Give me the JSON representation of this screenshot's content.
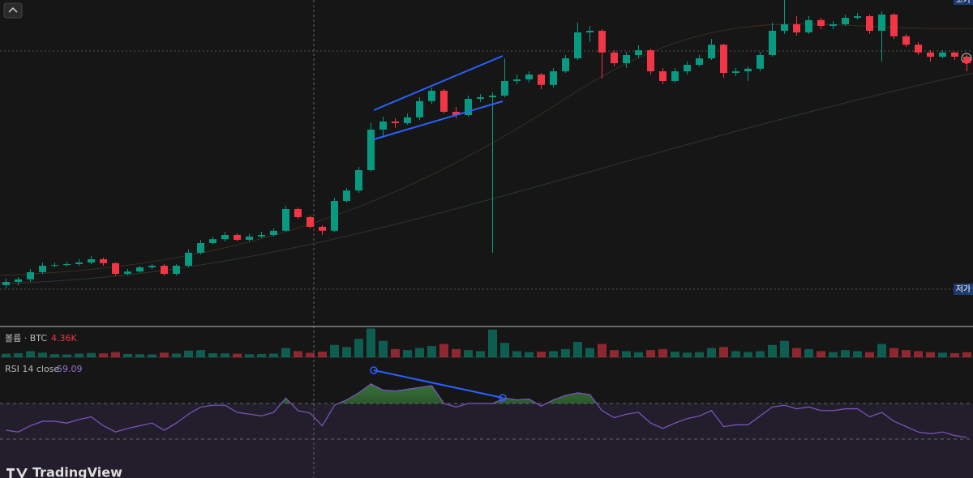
{
  "chart_data": {
    "type": "candlestick",
    "ylim": [
      0,
      100
    ],
    "candles": [
      [
        12,
        14,
        11,
        13
      ],
      [
        13,
        14.5,
        12,
        13.8
      ],
      [
        13.8,
        17,
        13,
        16
      ],
      [
        16,
        19,
        15.5,
        18
      ],
      [
        18,
        19,
        17.5,
        18.2
      ],
      [
        18.2,
        19.2,
        17.8,
        18.5
      ],
      [
        18.5,
        20,
        18,
        19
      ],
      [
        19,
        21,
        18.5,
        20
      ],
      [
        20,
        20.5,
        18,
        18.8
      ],
      [
        18.8,
        19,
        15,
        15.5
      ],
      [
        15.5,
        17,
        15,
        16.2
      ],
      [
        16.2,
        18,
        15.8,
        17.5
      ],
      [
        17.5,
        18.5,
        17,
        18
      ],
      [
        18,
        18.5,
        15,
        15.5
      ],
      [
        15.5,
        18.5,
        15,
        18
      ],
      [
        18,
        23,
        17.5,
        22
      ],
      [
        22,
        26,
        21.5,
        25
      ],
      [
        25,
        27,
        24.5,
        26.2
      ],
      [
        26.2,
        28.5,
        25.5,
        27.5
      ],
      [
        27.5,
        28,
        25.5,
        26
      ],
      [
        26,
        27.8,
        25.5,
        27
      ],
      [
        27,
        28.5,
        26.5,
        27.5
      ],
      [
        27.5,
        29.5,
        27,
        28.8
      ],
      [
        28.8,
        36.5,
        28.5,
        35.5
      ],
      [
        35.5,
        36,
        32.5,
        33
      ],
      [
        33,
        33.5,
        29.5,
        30
      ],
      [
        30,
        30.5,
        27.5,
        28.8
      ],
      [
        28.8,
        39,
        28.5,
        38
      ],
      [
        38,
        42,
        37.5,
        41.2
      ],
      [
        41.2,
        48.5,
        40.5,
        47.5
      ],
      [
        47.5,
        62,
        47,
        60
      ],
      [
        60,
        64,
        58,
        62.5
      ],
      [
        62.5,
        63.5,
        60.5,
        62
      ],
      [
        62,
        65,
        61.5,
        63.8
      ],
      [
        63.8,
        70,
        63,
        68.8
      ],
      [
        68.8,
        73,
        68,
        72
      ],
      [
        72,
        72.5,
        65,
        65.5
      ],
      [
        65.5,
        67,
        63.5,
        64.5
      ],
      [
        64.5,
        70.5,
        64,
        69.5
      ],
      [
        69.5,
        71,
        68.5,
        70
      ],
      [
        70,
        71.5,
        22,
        70.5
      ],
      [
        70.5,
        82,
        70,
        75
      ],
      [
        75,
        77,
        74,
        75.5
      ],
      [
        75.5,
        78,
        74.5,
        77
      ],
      [
        77,
        77.5,
        72.5,
        73.8
      ],
      [
        73.8,
        79,
        73,
        78
      ],
      [
        78,
        83,
        77.5,
        82
      ],
      [
        82,
        93,
        81.5,
        90
      ],
      [
        90,
        92,
        87,
        90.5
      ],
      [
        90.5,
        91,
        75.8,
        83.8
      ],
      [
        83.8,
        84.5,
        79.5,
        80.5
      ],
      [
        80.5,
        84,
        79,
        83
      ],
      [
        83,
        86,
        82,
        84.5
      ],
      [
        84.5,
        85,
        77,
        78
      ],
      [
        78,
        79,
        74,
        75
      ],
      [
        75,
        79,
        74.5,
        78
      ],
      [
        78,
        81,
        77,
        80
      ],
      [
        80,
        83,
        79.5,
        82
      ],
      [
        82,
        88,
        81.5,
        86.2
      ],
      [
        86.2,
        86.5,
        76,
        77.5
      ],
      [
        77.5,
        79,
        76.5,
        78
      ],
      [
        78,
        79.5,
        75,
        78.8
      ],
      [
        78.8,
        84,
        78,
        83
      ],
      [
        83,
        93,
        82.5,
        90.5
      ],
      [
        90.5,
        100,
        89.5,
        92.5
      ],
      [
        92.5,
        95,
        89,
        90
      ],
      [
        90,
        95,
        89.5,
        93.8
      ],
      [
        93.8,
        94.5,
        91,
        92
      ],
      [
        92,
        93.5,
        91,
        92.5
      ],
      [
        92.5,
        95.5,
        92,
        94.5
      ],
      [
        94.5,
        96,
        94,
        95
      ],
      [
        95,
        95.5,
        89.5,
        90.5
      ],
      [
        90.5,
        96.5,
        81,
        95.5
      ],
      [
        95.5,
        96,
        88,
        88.8
      ],
      [
        88.8,
        89.5,
        85.5,
        86.2
      ],
      [
        86.2,
        87,
        83,
        83.8
      ],
      [
        83.8,
        84.5,
        81,
        82.5
      ],
      [
        82.5,
        84.5,
        82,
        83.8
      ],
      [
        83.8,
        84,
        81.5,
        82.5
      ],
      [
        82.5,
        83,
        78,
        80.5
      ]
    ],
    "up_color": "#089981",
    "down_color": "#f23645",
    "volume_legend": {
      "label": "볼륨 · BTC",
      "value_label": "4.36K"
    },
    "vlim": [
      0,
      30000
    ],
    "volumes": [
      3500,
      4000,
      6000,
      4500,
      3000,
      2800,
      3500,
      4200,
      3800,
      5000,
      3200,
      3000,
      2800,
      4500,
      3600,
      6500,
      7000,
      4000,
      3800,
      3500,
      3000,
      3200,
      3600,
      9000,
      6000,
      4360,
      5500,
      12000,
      10000,
      18000,
      28000,
      16000,
      8000,
      7000,
      9000,
      11000,
      13000,
      8000,
      7000,
      6000,
      27000,
      14000,
      6000,
      5000,
      5500,
      6000,
      8000,
      15000,
      9000,
      13000,
      7000,
      6000,
      5000,
      7000,
      8000,
      5500,
      4500,
      5000,
      9000,
      10000,
      6000,
      5000,
      6000,
      12000,
      16000,
      9000,
      8000,
      6000,
      5000,
      7000,
      6000,
      5000,
      13000,
      9000,
      7000,
      6000,
      5000,
      4500,
      4000,
      5000
    ],
    "rsi_legend": {
      "label": "RSI 14 close",
      "value": 59.09
    },
    "rsi_levels": [
      70,
      30
    ],
    "rsi_color": "#7e57c2",
    "rsi": [
      40,
      38,
      45,
      50,
      50,
      48,
      52,
      55,
      45,
      38,
      42,
      45,
      48,
      40,
      48,
      58,
      66,
      68,
      68,
      60,
      58,
      56,
      60,
      76,
      62,
      59.09,
      45,
      68,
      74,
      82,
      92,
      85,
      84,
      86,
      88,
      90,
      70,
      66,
      70,
      70,
      70,
      76,
      74,
      75,
      67,
      74,
      79,
      82,
      80,
      62,
      54,
      58,
      60,
      48,
      42,
      48,
      53,
      56,
      62,
      44,
      46,
      46,
      56,
      66,
      68,
      64,
      66,
      62,
      62,
      64,
      64,
      55,
      60,
      50,
      44,
      38,
      36,
      38,
      34,
      32
    ],
    "high_tag": "고가",
    "low_tag": "저가",
    "logo": "TradingView"
  }
}
